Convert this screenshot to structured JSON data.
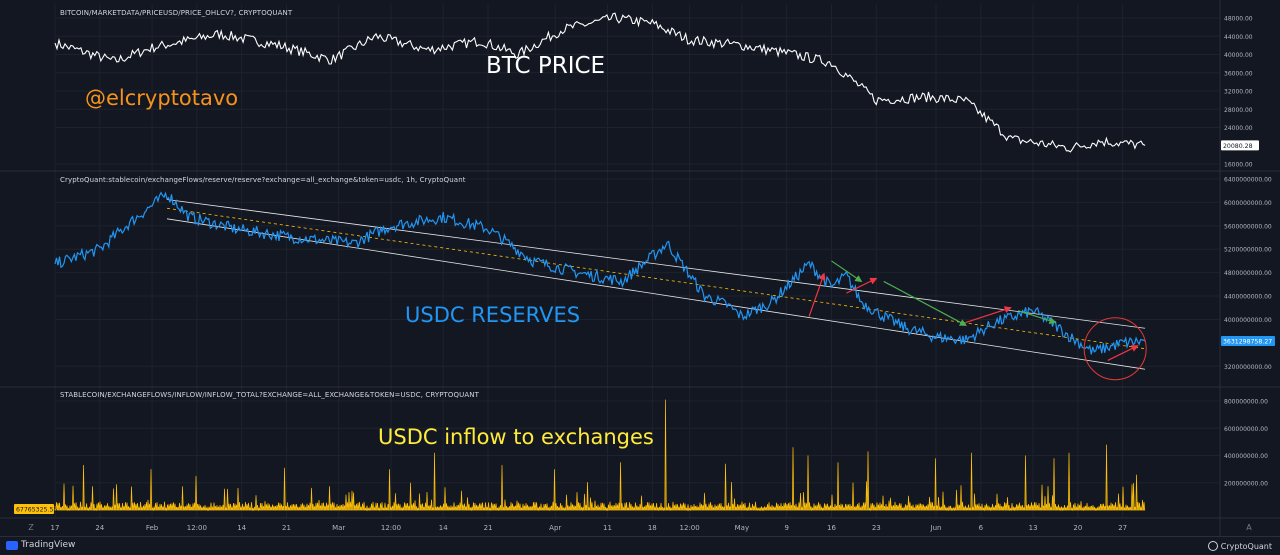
{
  "watermark": "@elcryptotavo",
  "chart_data": [
    {
      "type": "line",
      "title": "BITCOIN/MARKETDATA/PRICEUSD/PRICE_OHLCV?, CRYPTOQUANT",
      "annotation": "BTC PRICE",
      "line_color": "#ffffff",
      "ylim": [
        16000,
        48000
      ],
      "yticks": [
        {
          "value": 48000,
          "label": "48000.00"
        },
        {
          "value": 44000,
          "label": "44000.00"
        },
        {
          "value": 40000,
          "label": "40000.00"
        },
        {
          "value": 36000,
          "label": "36000.00"
        },
        {
          "value": 32000,
          "label": "32000.00"
        },
        {
          "value": 28000,
          "label": "28000.00"
        },
        {
          "value": 24000,
          "label": "24000.00"
        },
        {
          "value": 16000,
          "label": "16000.00"
        }
      ],
      "last_value_label": "20080.28",
      "x": [
        0,
        8,
        13,
        22,
        30,
        37,
        43,
        50,
        57,
        62,
        68,
        75,
        80,
        85,
        92,
        99,
        104,
        110,
        117,
        122,
        128,
        136,
        140,
        146
      ],
      "values": [
        42500,
        38500,
        41500,
        44500,
        42000,
        38800,
        44000,
        41000,
        43000,
        40000,
        45500,
        48000,
        46800,
        43200,
        42000,
        40000,
        38200,
        30000,
        30700,
        29800,
        21500,
        19500,
        21000,
        20080
      ]
    },
    {
      "type": "line",
      "title": "CryptoQuant:stablecoin/exchangeFlows/reserve/reserve?exchange=all_exchange&token=usdc, 1h, CryptoQuant",
      "annotation": "USDC RESERVES",
      "line_color": "#2196f3",
      "ylim": [
        3000000000,
        6400000000
      ],
      "yticks": [
        {
          "value": 6400000000,
          "label": "6400000000.00"
        },
        {
          "value": 6000000000,
          "label": "6000000000.00"
        },
        {
          "value": 5600000000,
          "label": "5600000000.00"
        },
        {
          "value": 5200000000,
          "label": "5200000000.00"
        },
        {
          "value": 4800000000,
          "label": "4800000000.00"
        },
        {
          "value": 4400000000,
          "label": "4400000000.00"
        },
        {
          "value": 4000000000,
          "label": "4000000000.00"
        },
        {
          "value": 3200000000,
          "label": "3200000000.00"
        }
      ],
      "last_value_label": "3631298758.27",
      "x": [
        0,
        6,
        10,
        15,
        18,
        24,
        32,
        40,
        45,
        52,
        58,
        64,
        70,
        76,
        82,
        87,
        90,
        92,
        96,
        101,
        104,
        106,
        108,
        111,
        114,
        118,
        122,
        126,
        131,
        134,
        136,
        139,
        143,
        146
      ],
      "values": [
        4950000000,
        5200000000,
        5650000000,
        6150000000,
        5750000000,
        5550000000,
        5400000000,
        5300000000,
        5600000000,
        5750000000,
        5550000000,
        5000000000,
        4800000000,
        4650000000,
        5300000000,
        4400000000,
        4250000000,
        4050000000,
        4300000000,
        4950000000,
        4550000000,
        4750000000,
        4300000000,
        4050000000,
        3850000000,
        3700000000,
        3650000000,
        3950000000,
        4150000000,
        3900000000,
        3700000000,
        3450000000,
        3600000000,
        3631298758
      ]
    },
    {
      "type": "area",
      "title": "STABLECOIN/EXCHANGEFLOWS/INFLOW/INFLOW_TOTAL?EXCHANGE=ALL_EXCHANGE&TOKEN=USDC, CRYPTOQUANT",
      "annotation": "USDC inflow to exchanges",
      "line_color": "#ffc107",
      "ylim": [
        0,
        800000000
      ],
      "yticks": [
        {
          "value": 800000000,
          "label": "800000000.00"
        },
        {
          "value": 600000000,
          "label": "600000000.00"
        },
        {
          "value": 400000000,
          "label": "400000000.00"
        },
        {
          "value": 200000000,
          "label": "200000000.00"
        }
      ],
      "last_value_label": "67765325.55",
      "baseline": 40000000,
      "spikes": [
        {
          "x": 4,
          "value": 330000000
        },
        {
          "x": 13,
          "value": 300000000
        },
        {
          "x": 19,
          "value": 250000000
        },
        {
          "x": 31,
          "value": 310000000
        },
        {
          "x": 45,
          "value": 300000000
        },
        {
          "x": 51,
          "value": 420000000
        },
        {
          "x": 60,
          "value": 330000000
        },
        {
          "x": 67,
          "value": 300000000
        },
        {
          "x": 76,
          "value": 350000000
        },
        {
          "x": 82,
          "value": 810000000
        },
        {
          "x": 90,
          "value": 340000000
        },
        {
          "x": 99,
          "value": 460000000
        },
        {
          "x": 101,
          "value": 400000000
        },
        {
          "x": 105,
          "value": 350000000
        },
        {
          "x": 109,
          "value": 430000000
        },
        {
          "x": 118,
          "value": 380000000
        },
        {
          "x": 123,
          "value": 420000000
        },
        {
          "x": 130,
          "value": 400000000
        },
        {
          "x": 134,
          "value": 380000000
        },
        {
          "x": 136,
          "value": 420000000
        },
        {
          "x": 141,
          "value": 480000000
        },
        {
          "x": 145,
          "value": 260000000
        }
      ]
    }
  ],
  "x_axis": {
    "range": [
      0,
      148
    ],
    "ticks": [
      {
        "x": 0,
        "label": "17"
      },
      {
        "x": 6,
        "label": "24"
      },
      {
        "x": 13,
        "label": "Feb"
      },
      {
        "x": 19,
        "label": "12:00"
      },
      {
        "x": 25,
        "label": "14"
      },
      {
        "x": 31,
        "label": "21"
      },
      {
        "x": 38,
        "label": "Mar"
      },
      {
        "x": 45,
        "label": "12:00"
      },
      {
        "x": 52,
        "label": "14"
      },
      {
        "x": 58,
        "label": "21"
      },
      {
        "x": 67,
        "label": "Apr"
      },
      {
        "x": 74,
        "label": "11"
      },
      {
        "x": 80,
        "label": "18"
      },
      {
        "x": 85,
        "label": "12:00"
      },
      {
        "x": 92,
        "label": "May"
      },
      {
        "x": 98,
        "label": "9"
      },
      {
        "x": 104,
        "label": "16"
      },
      {
        "x": 110,
        "label": "23"
      },
      {
        "x": 118,
        "label": "Jun"
      },
      {
        "x": 124,
        "label": "6"
      },
      {
        "x": 131,
        "label": "13"
      },
      {
        "x": 137,
        "label": "20"
      },
      {
        "x": 143,
        "label": "27"
      }
    ]
  },
  "footer": {
    "tradingview": "TradingView",
    "cryptoquant": "CryptoQuant",
    "left_button": "Z",
    "right_button": "A"
  },
  "colors": {
    "background": "#131722",
    "grid": "#1e222d",
    "separator": "#2a2e39",
    "watermark": "#f7931a",
    "btc_annotation": "#ffffff",
    "usdc_annotation": "#2196f3",
    "inflow_annotation": "#ffeb3b",
    "arrow_red": "#f23645",
    "arrow_green": "#4caf50",
    "circle": "#e53935",
    "channel_line": "#ffffff",
    "midline": "#ffc107",
    "price_tag": "#ffffff",
    "usdc_tag": "#2196f3",
    "inflow_tag": "#ffc107"
  },
  "usdc_channel": {
    "upper": [
      {
        "x": 15,
        "value": 6050000000
      },
      {
        "x": 146,
        "value": 3850000000
      }
    ],
    "lower": [
      {
        "x": 15,
        "value": 5720000000
      },
      {
        "x": 146,
        "value": 3150000000
      }
    ],
    "mid": [
      {
        "x": 15,
        "value": 5900000000
      },
      {
        "x": 146,
        "value": 3500000000
      }
    ]
  },
  "usdc_arrows": [
    {
      "color": "red",
      "from": {
        "x": 101,
        "value": 4050000000
      },
      "to": {
        "x": 103,
        "value": 4780000000
      }
    },
    {
      "color": "green",
      "from": {
        "x": 104,
        "value": 5000000000
      },
      "to": {
        "x": 108,
        "value": 4650000000
      }
    },
    {
      "color": "red",
      "from": {
        "x": 106,
        "value": 4450000000
      },
      "to": {
        "x": 110,
        "value": 4700000000
      }
    },
    {
      "color": "green",
      "from": {
        "x": 111,
        "value": 4650000000
      },
      "to": {
        "x": 122,
        "value": 3900000000
      }
    },
    {
      "color": "red",
      "from": {
        "x": 122,
        "value": 3950000000
      },
      "to": {
        "x": 128,
        "value": 4200000000
      }
    },
    {
      "color": "green",
      "from": {
        "x": 129,
        "value": 4150000000
      },
      "to": {
        "x": 134,
        "value": 3950000000
      }
    },
    {
      "color": "red",
      "from": {
        "x": 141,
        "value": 3300000000
      },
      "to": {
        "x": 145,
        "value": 3550000000
      }
    }
  ],
  "usdc_circle": {
    "x": 142,
    "value": 3500000000
  }
}
